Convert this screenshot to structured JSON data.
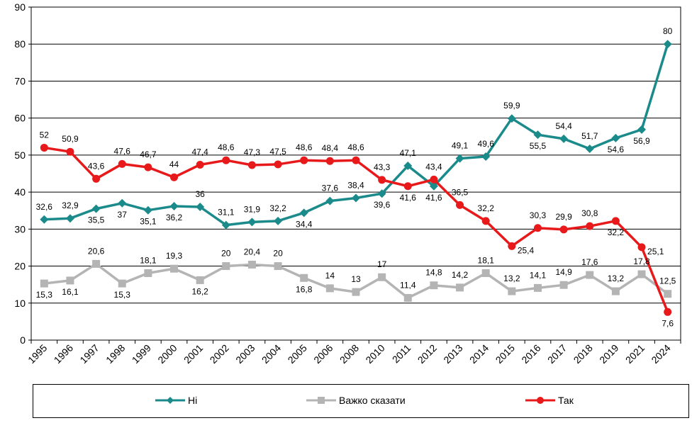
{
  "chart_data": {
    "type": "line",
    "categories": [
      "1995",
      "1996",
      "1997",
      "1998",
      "1999",
      "2000",
      "2001",
      "2002",
      "2003",
      "2004",
      "2005",
      "2006",
      "2008",
      "2010",
      "2011",
      "2012",
      "2013",
      "2014",
      "2015",
      "2016",
      "2017",
      "2018",
      "2019",
      "2021",
      "2024"
    ],
    "ylim": [
      0,
      90
    ],
    "yticks": [
      0,
      10,
      20,
      30,
      40,
      50,
      60,
      70,
      80,
      90
    ],
    "grid": true,
    "legend_position": "bottom",
    "series": [
      {
        "name": "Ні",
        "color": "#1a8a8a",
        "marker": "diamond",
        "values": [
          32.6,
          32.9,
          35.5,
          37,
          35.1,
          36.2,
          36,
          31.1,
          31.9,
          32.2,
          34.4,
          37.6,
          38.4,
          39.6,
          47.1,
          41.6,
          49.1,
          49.6,
          59.9,
          55.5,
          54.4,
          51.7,
          54.6,
          56.9,
          80
        ],
        "labels": [
          "32,6",
          "32,9",
          "35,5",
          "37",
          "35,1",
          "36,2",
          "36",
          "31,1",
          "31,9",
          "32,2",
          "34,4",
          "37,6",
          "38,4",
          "39,6",
          "47,1",
          "41,6",
          "49,1",
          "49,6",
          "59,9",
          "55,5",
          "54,4",
          "51,7",
          "54,6",
          "56,9",
          "80"
        ],
        "label_pos": [
          "a",
          "a",
          "b",
          "b",
          "b",
          "b",
          "a",
          "a",
          "a",
          "a",
          "b",
          "a",
          "a",
          "b",
          "a",
          "b",
          "a",
          "a",
          "a",
          "b",
          "a",
          "a",
          "b",
          "b",
          "a"
        ]
      },
      {
        "name": "Важко сказати",
        "color": "#b4b4b4",
        "marker": "square",
        "values": [
          15.3,
          16.1,
          20.6,
          15.3,
          18.1,
          19.3,
          16.2,
          20,
          20.4,
          20,
          16.8,
          14,
          13,
          17,
          11.4,
          14.8,
          14.2,
          18.1,
          13.2,
          14.1,
          14.9,
          17.6,
          13.2,
          17.8,
          12.5
        ],
        "labels": [
          "15,3",
          "16,1",
          "20,6",
          "15,3",
          "18,1",
          "19,3",
          "16,2",
          "20",
          "20,4",
          "20",
          "16,8",
          "14",
          "13",
          "17",
          "11,4",
          "14,8",
          "14,2",
          "18,1",
          "13,2",
          "14,1",
          "14,9",
          "17,6",
          "13,2",
          "17,8",
          "12,5"
        ],
        "label_pos": [
          "b",
          "b",
          "a",
          "b",
          "a",
          "a",
          "b",
          "a",
          "a",
          "a",
          "b",
          "a",
          "a",
          "a",
          "a",
          "a",
          "a",
          "a",
          "a",
          "a",
          "a",
          "a",
          "a",
          "a",
          "a"
        ]
      },
      {
        "name": "Так",
        "color": "#e8191a",
        "marker": "circle",
        "values": [
          52,
          50.9,
          43.6,
          47.6,
          46.7,
          44,
          47.4,
          48.6,
          47.3,
          47.5,
          48.6,
          48.4,
          48.6,
          43.3,
          41.6,
          43.4,
          36.5,
          32.2,
          25.4,
          30.3,
          29.9,
          30.8,
          32.2,
          25.1,
          7.6
        ],
        "labels": [
          "52",
          "50,9",
          "43,6",
          "47,6",
          "46,7",
          "44",
          "47,4",
          "48,6",
          "47,3",
          "47,5",
          "48,6",
          "48,4",
          "48,6",
          "43,3",
          "41,6",
          "43,4",
          "36,5",
          "32,2",
          "25,4",
          "30,3",
          "29,9",
          "30,8",
          "32,2",
          "25,1",
          "7,6"
        ],
        "label_pos": [
          "a",
          "a",
          "a",
          "a",
          "a",
          "a",
          "a",
          "a",
          "a",
          "a",
          "a",
          "a",
          "a",
          "a",
          "b",
          "a",
          "a",
          "a",
          "r",
          "a",
          "a",
          "a",
          "b",
          "r",
          "b"
        ]
      }
    ],
    "legend": [
      {
        "series": 0,
        "label": "Ні"
      },
      {
        "series": 1,
        "label": "Важко сказати"
      },
      {
        "series": 2,
        "label": "Так"
      }
    ]
  }
}
